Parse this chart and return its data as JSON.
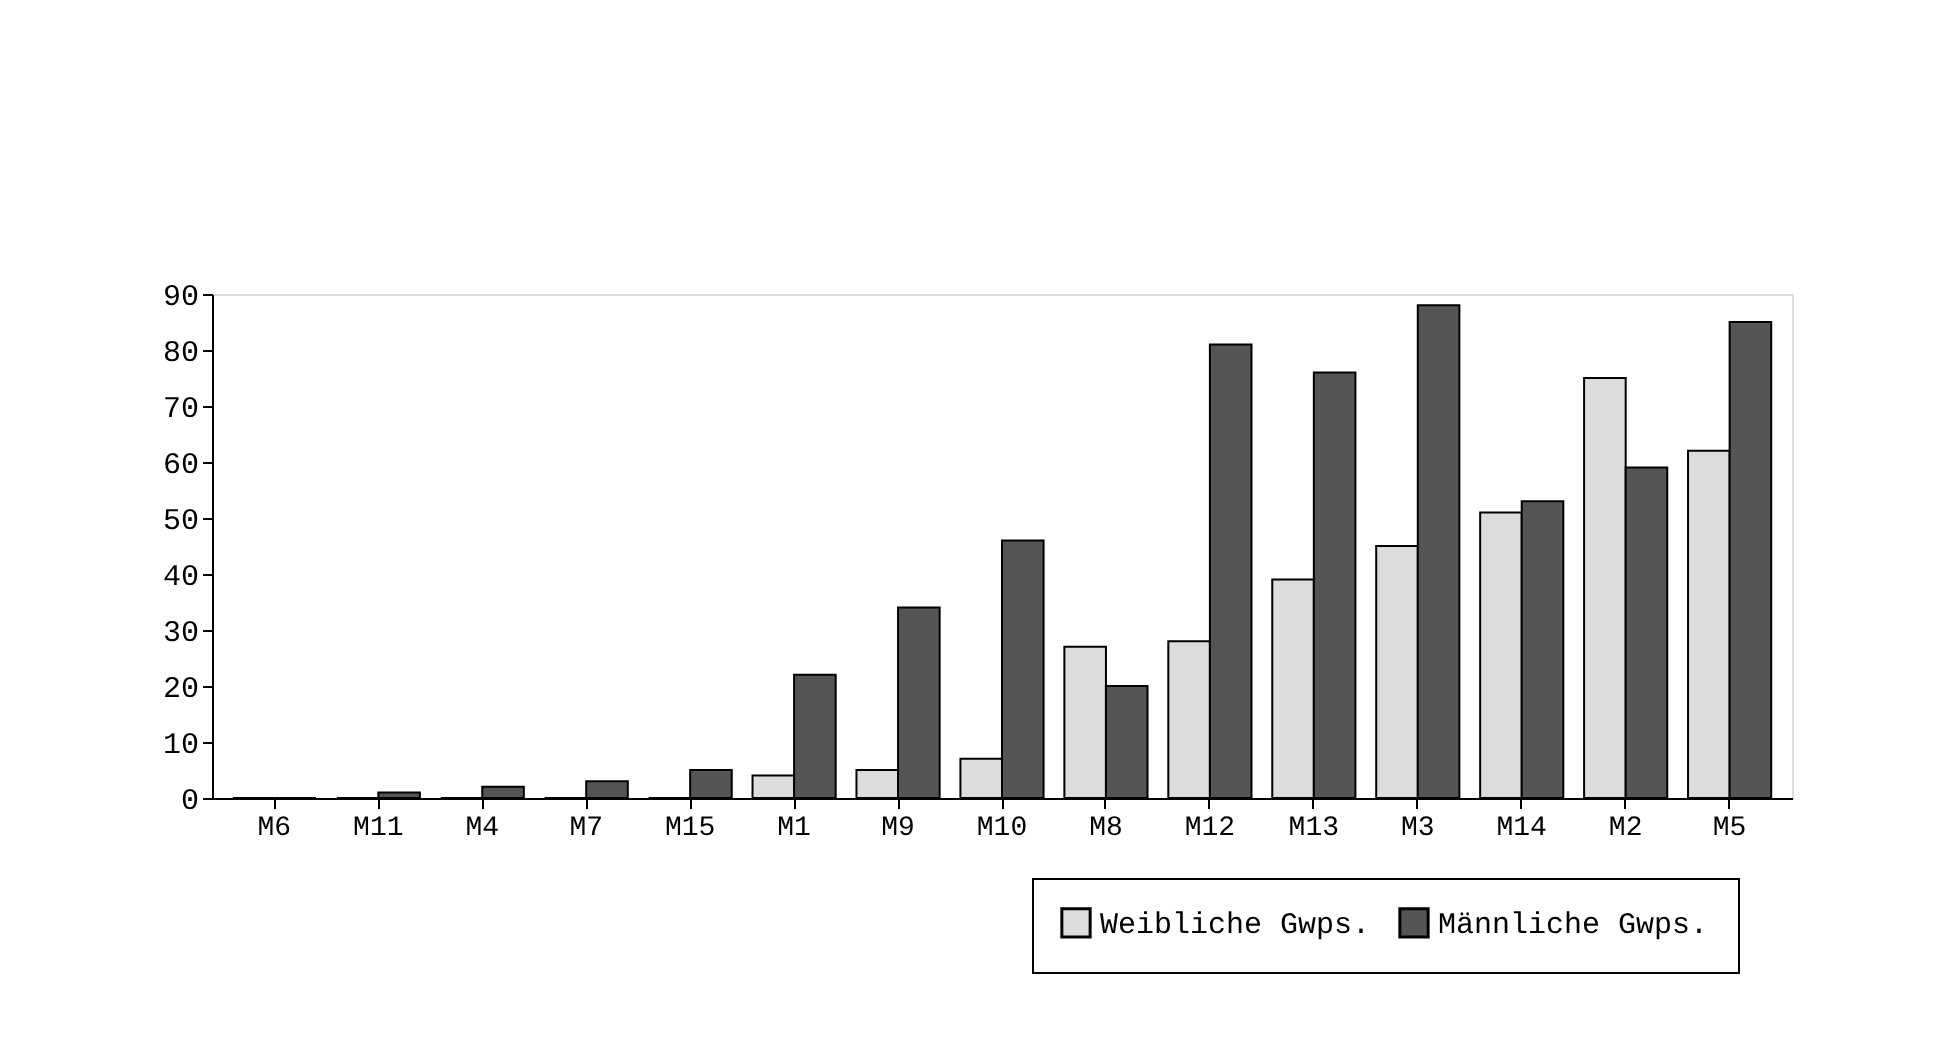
{
  "chart_data": {
    "type": "bar",
    "categories": [
      "M6",
      "M11",
      "M4",
      "M7",
      "M15",
      "M1",
      "M9",
      "M10",
      "M8",
      "M12",
      "M13",
      "M3",
      "M14",
      "M2",
      "M5"
    ],
    "series": [
      {
        "name": "Weibliche Gwps.",
        "color": "#dcdcdc",
        "values": [
          0,
          0,
          0,
          0,
          0,
          4,
          5,
          7,
          27,
          28,
          39,
          45,
          51,
          75,
          62
        ]
      },
      {
        "name": "Männliche Gwps.",
        "color": "#555555",
        "values": [
          0,
          1,
          2,
          3,
          5,
          22,
          34,
          46,
          20,
          81,
          76,
          88,
          53,
          59,
          85
        ]
      }
    ],
    "ylim": [
      0,
      90
    ],
    "yticks": [
      0,
      10,
      20,
      30,
      40,
      50,
      60,
      70,
      80,
      90
    ],
    "grid": false,
    "legend": "bottom right"
  }
}
